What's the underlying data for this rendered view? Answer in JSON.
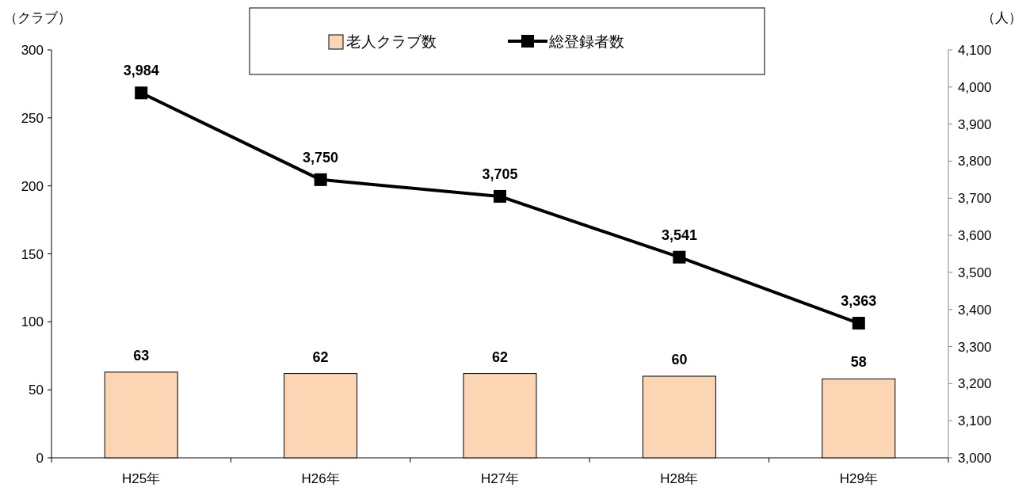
{
  "chart_data": {
    "type": "bar",
    "ylabel": "（クラブ）",
    "y2label": "（人）",
    "categories": [
      "H25年",
      "H26年",
      "H27年",
      "H28年",
      "H29年"
    ],
    "series": [
      {
        "name": "老人クラブ数",
        "color": "#fcd5b5",
        "values": [
          63,
          62,
          62,
          60,
          58
        ]
      },
      {
        "name": "総登録者数",
        "type": "line",
        "axis": "y2",
        "color": "#000000",
        "values": [
          3984,
          3750,
          3705,
          3541,
          3363
        ],
        "value_labels": [
          "3,984",
          "3,750",
          "3,705",
          "3,541",
          "3,363"
        ]
      }
    ],
    "ylim": [
      0,
      300
    ],
    "yticks": [
      0,
      50,
      100,
      150,
      200,
      250,
      300
    ],
    "y2lim": [
      3000,
      4100
    ],
    "y2ticks": [
      {
        "value": 3000,
        "label": "3,000"
      },
      {
        "value": 3100,
        "label": "3,100"
      },
      {
        "value": 3200,
        "label": "3,200"
      },
      {
        "value": 3300,
        "label": "3,300"
      },
      {
        "value": 3400,
        "label": "3,400"
      },
      {
        "value": 3500,
        "label": "3,500"
      },
      {
        "value": 3600,
        "label": "3,600"
      },
      {
        "value": 3700,
        "label": "3,700"
      },
      {
        "value": 3800,
        "label": "3,800"
      },
      {
        "value": 3900,
        "label": "3,900"
      },
      {
        "value": 4000,
        "label": "4,000"
      },
      {
        "value": 4100,
        "label": "4,100"
      }
    ],
    "data_labels": true,
    "marker": "square",
    "line_style": "solid",
    "legend": "top",
    "grid": false
  }
}
